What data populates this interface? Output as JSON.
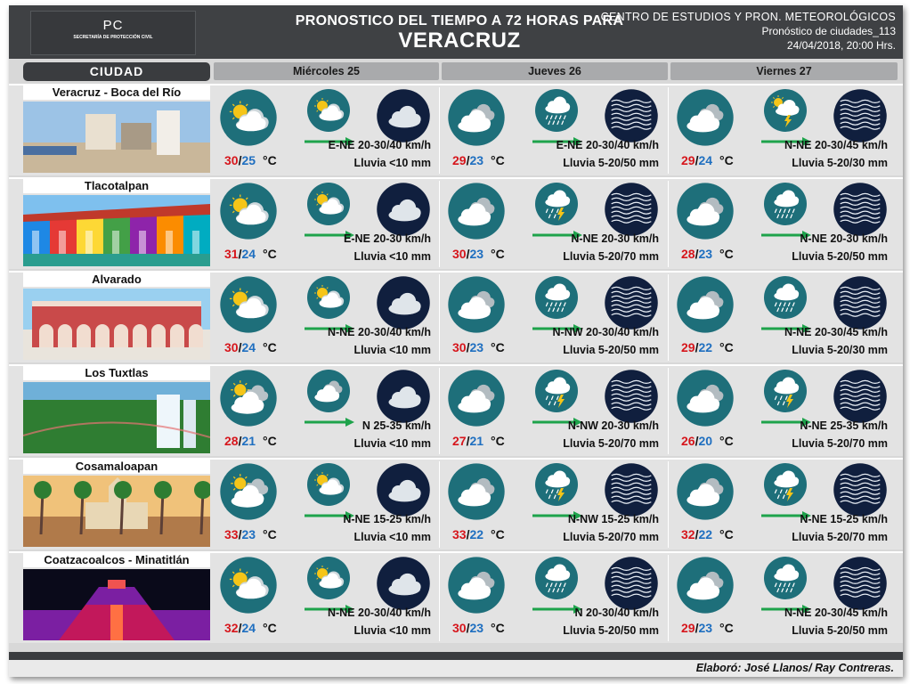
{
  "header": {
    "logo_text": "PC",
    "logo_org": "SECRETARÍA DE PROTECCIÓN CIVIL",
    "title_line1": "PRONOSTICO DEL TIEMPO A 72 HORAS PARA",
    "title_line2": "VERACRUZ",
    "meta_center": "CENTRO  DE  ESTUDIOS  Y PRON.  METEOROLÓGICOS",
    "meta_issue": "Pronóstico de ciudades_113",
    "meta_date": "24/04/2018, 20:00 Hrs."
  },
  "columns": {
    "city_header": "CIUDAD",
    "days": [
      "Miércoles 25",
      "Jueves 26",
      "Viernes 27"
    ]
  },
  "colors": {
    "header_bg": "#3f4144",
    "icon_teal": "#1e6f7a",
    "sea_navy": "#101f3e",
    "temp_max": "#d6161c",
    "temp_min": "#1f6fc0",
    "arrow_green": "#1ea34b"
  },
  "unit": "°C",
  "cities": [
    {
      "name": "Veracruz - Boca del Río",
      "days": [
        {
          "icon": "partly-cloudy-icon",
          "small_icon": "partly-cloudy-small-icon",
          "max": "30",
          "min": "25",
          "wind": "E-NE 20-30/40 km/h",
          "rain": "Lluvia <10 mm"
        },
        {
          "icon": "cloudy-icon",
          "small_icon": "rain-cloud-icon",
          "max": "29",
          "min": "23",
          "wind": "E-NE 20-30/40 km/h",
          "rain": "Lluvia 5-20/50 mm"
        },
        {
          "icon": "cloudy-icon",
          "small_icon": "storm-sun-cloud-icon",
          "max": "29",
          "min": "24",
          "wind": "N-NE 20-30/45 km/h",
          "rain": "Lluvia 5-20/30 mm"
        }
      ]
    },
    {
      "name": "Tlacotalpan",
      "days": [
        {
          "icon": "partly-cloudy-icon",
          "small_icon": "partly-cloudy-small-icon",
          "max": "31",
          "min": "24",
          "wind": "E-NE 20-30 km/h",
          "rain": "Lluvia <10 mm"
        },
        {
          "icon": "cloudy-icon",
          "small_icon": "thunderstorm-icon",
          "max": "30",
          "min": "23",
          "wind": "N-NE 20-30 km/h",
          "rain": "Lluvia 5-20/70 mm"
        },
        {
          "icon": "cloudy-icon",
          "small_icon": "rain-cloud-icon",
          "max": "28",
          "min": "23",
          "wind": "N-NE 20-30 km/h",
          "rain": "Lluvia 5-20/50 mm"
        }
      ]
    },
    {
      "name": "Alvarado",
      "days": [
        {
          "icon": "partly-cloudy-icon",
          "small_icon": "partly-cloudy-small-icon",
          "max": "30",
          "min": "24",
          "wind": "N-NE 20-30/40 km/h",
          "rain": "Lluvia <10 mm"
        },
        {
          "icon": "cloudy-icon",
          "small_icon": "rain-cloud-icon",
          "max": "30",
          "min": "23",
          "wind": "N-NW 20-30/40 km/h",
          "rain": "Lluvia 5-20/50 mm"
        },
        {
          "icon": "cloudy-icon",
          "small_icon": "rain-cloud-icon",
          "max": "29",
          "min": "22",
          "wind": "N-NE 20-30/45 km/h",
          "rain": "Lluvia 5-20/30 mm"
        }
      ]
    },
    {
      "name": "Los Tuxtlas",
      "days": [
        {
          "icon": "mostly-cloudy-icon",
          "small_icon": "cloudy-small-icon",
          "max": "28",
          "min": "21",
          "wind": "N 25-35 km/h",
          "rain": "Lluvia <10 mm"
        },
        {
          "icon": "cloudy-icon",
          "small_icon": "thunderstorm-icon",
          "max": "27",
          "min": "21",
          "wind": "N-NW 20-30 km/h",
          "rain": "Lluvia 5-20/70 mm"
        },
        {
          "icon": "cloudy-icon",
          "small_icon": "thunderstorm-icon",
          "max": "26",
          "min": "20",
          "wind": "N-NE 25-35 km/h",
          "rain": "Lluvia 5-20/70 mm"
        }
      ]
    },
    {
      "name": "Cosamaloapan",
      "days": [
        {
          "icon": "mostly-cloudy-icon",
          "small_icon": "partly-cloudy-small-icon",
          "max": "33",
          "min": "23",
          "wind": "N-NE 15-25 km/h",
          "rain": "Lluvia <10 mm"
        },
        {
          "icon": "cloudy-icon",
          "small_icon": "thunderstorm-icon",
          "max": "33",
          "min": "22",
          "wind": "N-NW 15-25 km/h",
          "rain": "Lluvia 5-20/70 mm"
        },
        {
          "icon": "cloudy-icon",
          "small_icon": "thunderstorm-icon",
          "max": "32",
          "min": "22",
          "wind": "N-NE 15-25 km/h",
          "rain": "Lluvia 5-20/70 mm"
        }
      ]
    },
    {
      "name": "Coatzacoalcos - Minatitlán",
      "days": [
        {
          "icon": "partly-cloudy-icon",
          "small_icon": "partly-cloudy-small-icon",
          "max": "32",
          "min": "24",
          "wind": "N-NE 20-30/40 km/h",
          "rain": "Lluvia <10 mm"
        },
        {
          "icon": "cloudy-icon",
          "small_icon": "rain-cloud-icon",
          "max": "30",
          "min": "23",
          "wind": "N 20-30/40 km/h",
          "rain": "Lluvia 5-20/50 mm"
        },
        {
          "icon": "cloudy-icon",
          "small_icon": "rain-cloud-icon",
          "max": "29",
          "min": "23",
          "wind": "N-NE 20-30/45 km/h",
          "rain": "Lluvia 5-20/50 mm"
        }
      ]
    }
  ],
  "footer": {
    "credit": "Elaboró: José Llanos/ Ray Contreras."
  }
}
